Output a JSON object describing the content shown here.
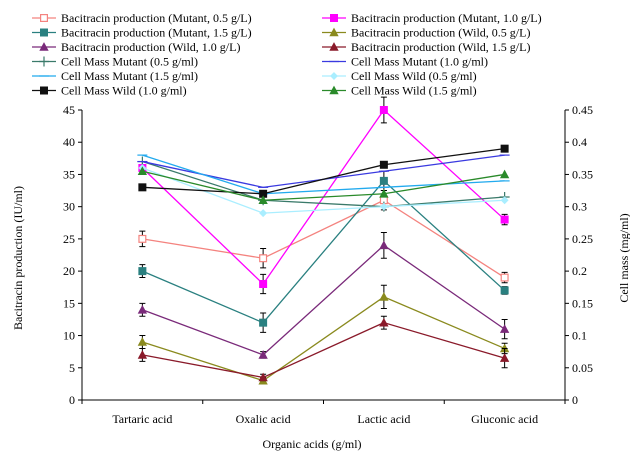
{
  "chart_data": {
    "type": "line",
    "categories": [
      "Tartaric acid",
      "Oxalic acid",
      "Lactic acid",
      "Gluconic acid"
    ],
    "xlabel": "Organic acids (g/ml)",
    "ylabel": "Bacitracin production (IU/ml)",
    "y2label": "Cell mass (mg/ml)",
    "ylim": [
      0,
      45
    ],
    "yticks": [
      "0",
      "5",
      "10",
      "15",
      "20",
      "25",
      "30",
      "35",
      "40",
      "45"
    ],
    "y2lim": [
      0,
      0.45
    ],
    "y2ticks": [
      "0",
      "0.05",
      "0.1",
      "0.15",
      "0.2",
      "0.25",
      "0.3",
      "0.35",
      "0.4",
      "0.45"
    ],
    "grid": false,
    "legend_position": "top",
    "series": [
      {
        "name": "Bacitracin production (Mutant, 0.5 g/L)",
        "axis": "left",
        "color": "#f4837f",
        "marker": "square-open",
        "values": [
          25,
          22,
          31,
          19
        ],
        "errors": [
          1.2,
          1.5,
          1.5,
          0.8
        ]
      },
      {
        "name": "Bacitracin production (Mutant, 1.0 g/L)",
        "axis": "left",
        "color": "#ff00ff",
        "marker": "square",
        "values": [
          36,
          18,
          45,
          28
        ],
        "errors": [
          1.0,
          1.5,
          2.0,
          0.8
        ]
      },
      {
        "name": "Bacitracin production (Mutant, 1.5 g/L)",
        "axis": "left",
        "color": "#2a8080",
        "marker": "square",
        "values": [
          20,
          12,
          34,
          17
        ],
        "errors": [
          1.0,
          1.5,
          1.5,
          0.6
        ]
      },
      {
        "name": "Bacitracin production (Wild, 0.5 g/L)",
        "axis": "left",
        "color": "#8a8a1e",
        "marker": "triangle",
        "values": [
          9,
          3,
          16,
          8
        ],
        "errors": [
          1.0,
          0.5,
          1.8,
          0.8
        ]
      },
      {
        "name": "Bacitracin production (Wild, 1.0 g/L)",
        "axis": "left",
        "color": "#7a2a7a",
        "marker": "triangle",
        "values": [
          14,
          7,
          24,
          11
        ],
        "errors": [
          1.0,
          0.5,
          2.0,
          1.5
        ]
      },
      {
        "name": "Bacitracin production (Wild, 1.5 g/L)",
        "axis": "left",
        "color": "#8a1a2a",
        "marker": "triangle",
        "values": [
          7,
          3.5,
          12,
          6.5
        ],
        "errors": [
          1.0,
          0.5,
          1.0,
          1.5
        ]
      },
      {
        "name": "Cell Mass Mutant (0.5 g/ml)",
        "axis": "right",
        "color": "#3a7a6a",
        "marker": "plus",
        "values": [
          0.37,
          0.31,
          0.3,
          0.315
        ]
      },
      {
        "name": "Cell Mass Mutant (1.0 g/ml)",
        "axis": "right",
        "color": "#3a3ae0",
        "marker": "line",
        "values": [
          0.37,
          0.33,
          0.355,
          0.38
        ]
      },
      {
        "name": "Cell Mass Mutant (1.5 g/ml)",
        "axis": "right",
        "color": "#22aaee",
        "marker": "line",
        "values": [
          0.38,
          0.32,
          0.33,
          0.34
        ]
      },
      {
        "name": "Cell Mass Wild (0.5 g/ml)",
        "axis": "right",
        "color": "#aaeeff",
        "marker": "diamond",
        "values": [
          0.36,
          0.29,
          0.3,
          0.31
        ]
      },
      {
        "name": "Cell Mass Wild (1.0 g/ml)",
        "axis": "right",
        "color": "#111111",
        "marker": "square",
        "values": [
          0.33,
          0.32,
          0.365,
          0.39
        ]
      },
      {
        "name": "Cell Mass Wild (1.5 g/ml)",
        "axis": "right",
        "color": "#2a8a2a",
        "marker": "triangle",
        "values": [
          0.355,
          0.31,
          0.32,
          0.35
        ]
      }
    ]
  }
}
